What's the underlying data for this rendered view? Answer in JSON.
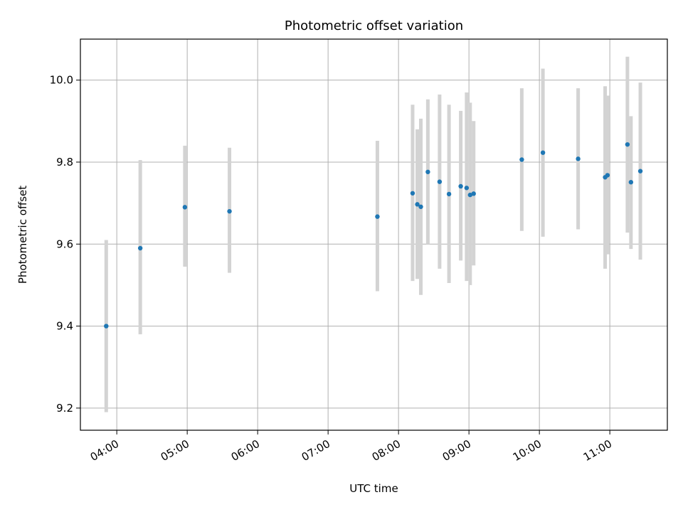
{
  "chart_data": {
    "type": "scatter",
    "title": "Photometric offset variation",
    "xlabel": "UTC time",
    "ylabel": "Photometric offset",
    "grid": true,
    "xlim": [
      "03:29",
      "11:49"
    ],
    "ylim": [
      9.146,
      10.1
    ],
    "xticks": [
      "04:00",
      "05:00",
      "06:00",
      "07:00",
      "08:00",
      "09:00",
      "10:00",
      "11:00"
    ],
    "yticks": [
      9.2,
      9.4,
      9.6,
      9.8,
      10.0
    ],
    "ytick_labels": [
      "9.2",
      "9.4",
      "9.6",
      "9.8",
      "10.0"
    ],
    "series": [
      {
        "marker_color": "#1f77b4",
        "errorbar_color": "#d3d3d3",
        "points": [
          {
            "x": "03:51",
            "y": 9.4,
            "ylo": 9.19,
            "yhi": 9.61
          },
          {
            "x": "04:20",
            "y": 9.59,
            "ylo": 9.38,
            "yhi": 9.805
          },
          {
            "x": "04:58",
            "y": 9.69,
            "ylo": 9.545,
            "yhi": 9.84
          },
          {
            "x": "05:36",
            "y": 9.68,
            "ylo": 9.53,
            "yhi": 9.835
          },
          {
            "x": "07:42",
            "y": 9.667,
            "ylo": 9.485,
            "yhi": 9.852
          },
          {
            "x": "08:12",
            "y": 9.724,
            "ylo": 9.51,
            "yhi": 9.94
          },
          {
            "x": "08:16",
            "y": 9.697,
            "ylo": 9.515,
            "yhi": 9.88
          },
          {
            "x": "08:19",
            "y": 9.691,
            "ylo": 9.476,
            "yhi": 9.906
          },
          {
            "x": "08:25",
            "y": 9.776,
            "ylo": 9.6,
            "yhi": 9.953
          },
          {
            "x": "08:35",
            "y": 9.752,
            "ylo": 9.54,
            "yhi": 9.965
          },
          {
            "x": "08:43",
            "y": 9.722,
            "ylo": 9.505,
            "yhi": 9.94
          },
          {
            "x": "08:53",
            "y": 9.741,
            "ylo": 9.56,
            "yhi": 9.925
          },
          {
            "x": "08:58",
            "y": 9.737,
            "ylo": 9.51,
            "yhi": 9.97
          },
          {
            "x": "09:01",
            "y": 9.72,
            "ylo": 9.5,
            "yhi": 9.945
          },
          {
            "x": "09:04",
            "y": 9.723,
            "ylo": 9.548,
            "yhi": 9.9
          },
          {
            "x": "09:45",
            "y": 9.806,
            "ylo": 9.632,
            "yhi": 9.98
          },
          {
            "x": "10:03",
            "y": 9.823,
            "ylo": 9.618,
            "yhi": 10.028
          },
          {
            "x": "10:33",
            "y": 9.808,
            "ylo": 9.636,
            "yhi": 9.98
          },
          {
            "x": "10:56",
            "y": 9.763,
            "ylo": 9.54,
            "yhi": 9.985
          },
          {
            "x": "10:58",
            "y": 9.768,
            "ylo": 9.575,
            "yhi": 9.962
          },
          {
            "x": "11:15",
            "y": 9.843,
            "ylo": 9.628,
            "yhi": 10.057
          },
          {
            "x": "11:18",
            "y": 9.751,
            "ylo": 9.588,
            "yhi": 9.912
          },
          {
            "x": "11:26",
            "y": 9.778,
            "ylo": 9.562,
            "yhi": 9.994
          }
        ]
      }
    ]
  }
}
